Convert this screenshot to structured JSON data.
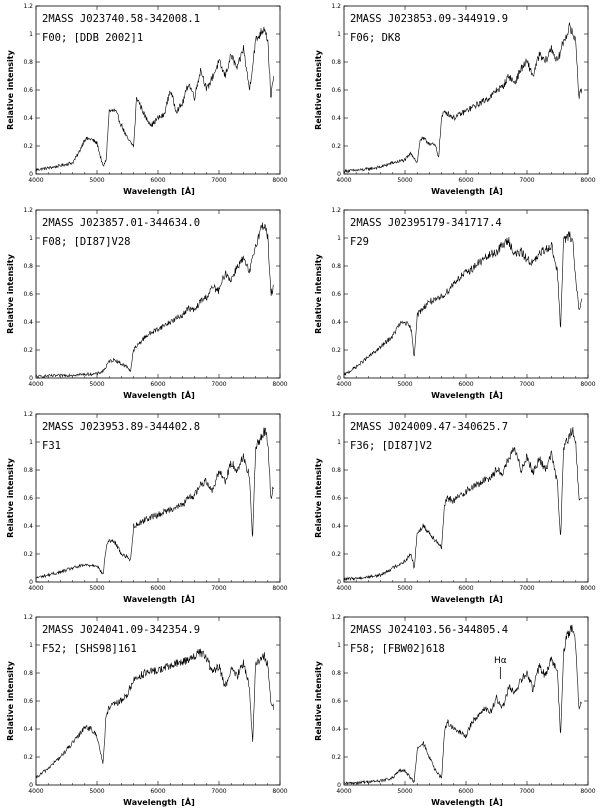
{
  "figure": {
    "xlabel": "Wavelength",
    "xunit": "[Å]",
    "ylabel": "Relative intensity"
  },
  "chart_data": [
    {
      "type": "line",
      "title_line1": "2MASS  J023740.58-342008.1",
      "title_line2": "F00;  [DDB 2002]1",
      "xlim": [
        4000,
        8000
      ],
      "ylim": [
        0,
        1.2
      ],
      "xticks": [
        4000,
        5000,
        6000,
        7000,
        8000
      ],
      "yticks": [
        0,
        0.2,
        0.4,
        0.6,
        0.8,
        1,
        1.2
      ],
      "series": [
        {
          "x": [
            4000,
            4300,
            4600,
            4700,
            4800,
            4900,
            5000,
            5100,
            5150,
            5200,
            5300,
            5400,
            5500,
            5600,
            5650,
            5700,
            5800,
            5900,
            6000,
            6100,
            6200,
            6300,
            6400,
            6500,
            6600,
            6700,
            6800,
            6900,
            7000,
            7100,
            7200,
            7300,
            7400,
            7500,
            7600,
            7700,
            7750,
            7800,
            7850,
            7900
          ],
          "y": [
            0.03,
            0.05,
            0.08,
            0.15,
            0.25,
            0.25,
            0.22,
            0.05,
            0.1,
            0.45,
            0.45,
            0.35,
            0.25,
            0.2,
            0.55,
            0.5,
            0.4,
            0.35,
            0.4,
            0.42,
            0.6,
            0.45,
            0.5,
            0.65,
            0.55,
            0.75,
            0.6,
            0.7,
            0.8,
            0.7,
            0.85,
            0.75,
            0.9,
            0.6,
            0.95,
            1.02,
            1.05,
            0.95,
            0.55,
            0.7
          ]
        }
      ]
    },
    {
      "type": "line",
      "title_line1": "2MASS  J023853.09-344919.9",
      "title_line2": "F06;  DK8",
      "xlim": [
        4000,
        8000
      ],
      "ylim": [
        0,
        1.2
      ],
      "xticks": [
        4000,
        5000,
        6000,
        7000,
        8000
      ],
      "yticks": [
        0,
        0.2,
        0.4,
        0.6,
        0.8,
        1,
        1.2
      ],
      "series": [
        {
          "x": [
            4000,
            4300,
            4600,
            4800,
            5000,
            5100,
            5200,
            5250,
            5300,
            5400,
            5500,
            5550,
            5600,
            5650,
            5800,
            6000,
            6200,
            6400,
            6500,
            6600,
            6700,
            6800,
            6900,
            7000,
            7100,
            7200,
            7300,
            7400,
            7500,
            7600,
            7700,
            7750,
            7800,
            7850,
            7900
          ],
          "y": [
            0.02,
            0.03,
            0.05,
            0.08,
            0.1,
            0.15,
            0.08,
            0.25,
            0.25,
            0.22,
            0.2,
            0.12,
            0.4,
            0.45,
            0.4,
            0.45,
            0.5,
            0.55,
            0.6,
            0.62,
            0.7,
            0.65,
            0.75,
            0.8,
            0.7,
            0.85,
            0.8,
            0.9,
            0.8,
            0.95,
            1.05,
            1.0,
            0.95,
            0.55,
            0.6
          ]
        }
      ]
    },
    {
      "type": "line",
      "title_line1": "2MASS  J023857.01-344634.0",
      "title_line2": "F08;  [DI87]V28",
      "xlim": [
        4000,
        8000
      ],
      "ylim": [
        0,
        1.2
      ],
      "xticks": [
        4000,
        5000,
        6000,
        7000,
        8000
      ],
      "yticks": [
        0,
        0.2,
        0.4,
        0.6,
        0.8,
        1,
        1.2
      ],
      "series": [
        {
          "x": [
            4000,
            4500,
            5000,
            5100,
            5150,
            5200,
            5300,
            5400,
            5500,
            5550,
            5600,
            5700,
            5800,
            6000,
            6200,
            6400,
            6500,
            6600,
            6700,
            6800,
            6900,
            7000,
            7100,
            7200,
            7300,
            7400,
            7500,
            7600,
            7700,
            7750,
            7800,
            7850,
            7900
          ],
          "y": [
            0.01,
            0.02,
            0.03,
            0.05,
            0.08,
            0.12,
            0.13,
            0.1,
            0.08,
            0.05,
            0.2,
            0.25,
            0.3,
            0.35,
            0.4,
            0.45,
            0.5,
            0.48,
            0.55,
            0.58,
            0.65,
            0.62,
            0.75,
            0.7,
            0.8,
            0.85,
            0.75,
            0.95,
            1.08,
            1.1,
            1.0,
            0.6,
            0.65
          ]
        }
      ]
    },
    {
      "type": "line",
      "title_line1": "2MASS  J02395179-341717.4",
      "title_line2": "F29",
      "xlim": [
        4000,
        8000
      ],
      "ylim": [
        0,
        1.2
      ],
      "xticks": [
        4000,
        5000,
        6000,
        7000,
        8000
      ],
      "yticks": [
        0,
        0.2,
        0.4,
        0.6,
        0.8,
        1,
        1.2
      ],
      "series": [
        {
          "x": [
            4000,
            4200,
            4400,
            4600,
            4800,
            4900,
            5000,
            5100,
            5150,
            5200,
            5300,
            5400,
            5500,
            5600,
            5700,
            5800,
            5900,
            6000,
            6100,
            6200,
            6300,
            6400,
            6500,
            6600,
            6700,
            6800,
            6900,
            7000,
            7100,
            7200,
            7300,
            7400,
            7500,
            7550,
            7600,
            7650,
            7700,
            7750,
            7800,
            7850,
            7900
          ],
          "y": [
            0.02,
            0.08,
            0.15,
            0.22,
            0.3,
            0.38,
            0.4,
            0.35,
            0.15,
            0.45,
            0.5,
            0.55,
            0.55,
            0.58,
            0.62,
            0.68,
            0.72,
            0.75,
            0.78,
            0.82,
            0.85,
            0.88,
            0.9,
            0.95,
            0.98,
            0.88,
            0.9,
            0.85,
            0.82,
            0.88,
            0.92,
            0.95,
            0.75,
            0.35,
            0.98,
            1.0,
            1.02,
            0.98,
            0.7,
            0.5,
            0.55
          ]
        }
      ]
    },
    {
      "type": "line",
      "title_line1": "2MASS  J023953.89-344402.8",
      "title_line2": "F31",
      "xlim": [
        4000,
        8000
      ],
      "ylim": [
        0,
        1.2
      ],
      "xticks": [
        4000,
        5000,
        6000,
        7000,
        8000
      ],
      "yticks": [
        0,
        0.2,
        0.4,
        0.6,
        0.8,
        1,
        1.2
      ],
      "series": [
        {
          "x": [
            4000,
            4200,
            4400,
            4600,
            4800,
            5000,
            5100,
            5150,
            5200,
            5300,
            5400,
            5500,
            5550,
            5600,
            5700,
            5800,
            6000,
            6200,
            6400,
            6500,
            6600,
            6700,
            6800,
            6900,
            7000,
            7100,
            7200,
            7300,
            7400,
            7500,
            7550,
            7600,
            7650,
            7700,
            7750,
            7800,
            7850,
            7900
          ],
          "y": [
            0.03,
            0.05,
            0.07,
            0.1,
            0.12,
            0.12,
            0.05,
            0.25,
            0.3,
            0.28,
            0.2,
            0.18,
            0.15,
            0.4,
            0.42,
            0.45,
            0.48,
            0.52,
            0.55,
            0.6,
            0.62,
            0.7,
            0.72,
            0.65,
            0.8,
            0.72,
            0.85,
            0.8,
            0.9,
            0.75,
            0.3,
            0.95,
            1.0,
            1.05,
            1.08,
            1.0,
            0.6,
            0.7
          ]
        }
      ]
    },
    {
      "type": "line",
      "title_line1": "2MASS  J024009.47-340625.7",
      "title_line2": "F36;  [DI87]V2",
      "xlim": [
        4000,
        8000
      ],
      "ylim": [
        0,
        1.2
      ],
      "xticks": [
        4000,
        5000,
        6000,
        7000,
        8000
      ],
      "yticks": [
        0,
        0.2,
        0.4,
        0.6,
        0.8,
        1,
        1.2
      ],
      "series": [
        {
          "x": [
            4000,
            4300,
            4600,
            4800,
            5000,
            5100,
            5150,
            5200,
            5300,
            5400,
            5500,
            5600,
            5650,
            5700,
            5800,
            6000,
            6200,
            6400,
            6500,
            6600,
            6700,
            6800,
            6900,
            7000,
            7100,
            7200,
            7300,
            7400,
            7500,
            7550,
            7600,
            7650,
            7700,
            7750,
            7800,
            7850,
            7900
          ],
          "y": [
            0.02,
            0.03,
            0.05,
            0.1,
            0.15,
            0.2,
            0.1,
            0.35,
            0.4,
            0.35,
            0.3,
            0.25,
            0.55,
            0.6,
            0.58,
            0.65,
            0.7,
            0.75,
            0.8,
            0.78,
            0.88,
            0.95,
            0.8,
            0.9,
            0.78,
            0.88,
            0.8,
            0.92,
            0.7,
            0.3,
            0.95,
            1.0,
            1.05,
            1.08,
            0.98,
            0.6,
            0.62
          ]
        }
      ]
    },
    {
      "type": "line",
      "title_line1": "2MASS  J024041.09-342354.9",
      "title_line2": "F52;  [SHS98]161",
      "xlim": [
        4000,
        8000
      ],
      "ylim": [
        0,
        1.2
      ],
      "xticks": [
        4000,
        5000,
        6000,
        7000,
        8000
      ],
      "yticks": [
        0,
        0.2,
        0.4,
        0.6,
        0.8,
        1,
        1.2
      ],
      "series": [
        {
          "x": [
            4000,
            4200,
            4400,
            4600,
            4700,
            4800,
            4900,
            5000,
            5100,
            5150,
            5200,
            5300,
            5400,
            5500,
            5600,
            5700,
            5800,
            6000,
            6200,
            6400,
            6500,
            6600,
            6700,
            6800,
            6900,
            7000,
            7100,
            7200,
            7300,
            7400,
            7500,
            7550,
            7600,
            7650,
            7700,
            7750,
            7800,
            7850,
            7900
          ],
          "y": [
            0.05,
            0.12,
            0.2,
            0.3,
            0.35,
            0.42,
            0.4,
            0.35,
            0.15,
            0.5,
            0.55,
            0.58,
            0.6,
            0.65,
            0.75,
            0.78,
            0.8,
            0.82,
            0.85,
            0.88,
            0.9,
            0.92,
            0.95,
            0.9,
            0.8,
            0.85,
            0.7,
            0.82,
            0.78,
            0.88,
            0.7,
            0.3,
            0.85,
            0.88,
            0.9,
            0.92,
            0.85,
            0.6,
            0.55
          ]
        }
      ]
    },
    {
      "type": "line",
      "title_line1": "2MASS  J024103.56-344805.4",
      "title_line2": "F58;  [FBW02]618",
      "annotation": "Hα",
      "annotation_x": 6563,
      "xlim": [
        4000,
        8000
      ],
      "ylim": [
        0,
        1.2
      ],
      "xticks": [
        4000,
        5000,
        6000,
        7000,
        8000
      ],
      "yticks": [
        0,
        0.2,
        0.4,
        0.6,
        0.8,
        1,
        1.2
      ],
      "series": [
        {
          "x": [
            4000,
            4300,
            4600,
            4800,
            4900,
            5000,
            5100,
            5150,
            5200,
            5300,
            5400,
            5500,
            5600,
            5650,
            5700,
            5800,
            6000,
            6100,
            6200,
            6300,
            6400,
            6500,
            6600,
            6700,
            6800,
            6900,
            7000,
            7100,
            7200,
            7300,
            7400,
            7500,
            7550,
            7600,
            7650,
            7700,
            7750,
            7800,
            7850,
            7900
          ],
          "y": [
            0.01,
            0.02,
            0.03,
            0.05,
            0.1,
            0.1,
            0.05,
            0.02,
            0.25,
            0.3,
            0.2,
            0.1,
            0.05,
            0.4,
            0.45,
            0.4,
            0.35,
            0.45,
            0.5,
            0.55,
            0.52,
            0.62,
            0.55,
            0.7,
            0.65,
            0.75,
            0.8,
            0.68,
            0.85,
            0.78,
            0.9,
            0.8,
            0.35,
            0.95,
            1.05,
            1.1,
            1.12,
            1.0,
            0.55,
            0.6
          ]
        }
      ]
    }
  ]
}
